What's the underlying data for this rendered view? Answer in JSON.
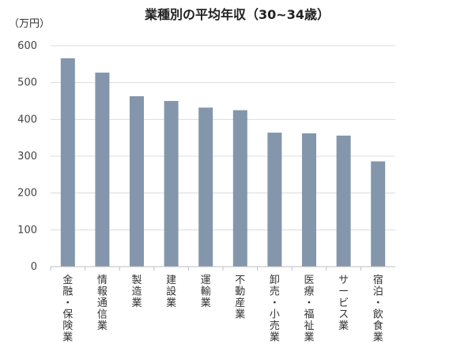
{
  "chart_data": {
    "type": "bar",
    "title": "業種別の平均年収（30~34歳）",
    "unit_label": "（万円）",
    "categories": [
      "金融・保険業",
      "情報通信業",
      "製造業",
      "建設業",
      "運輸業",
      "不動産業",
      "卸売・小売業",
      "医療・福祉業",
      "サービス業",
      "宿泊・飲食業"
    ],
    "values": [
      566,
      527,
      463,
      450,
      432,
      425,
      364,
      362,
      356,
      286
    ],
    "ylim": [
      0,
      600
    ],
    "yticks": [
      0,
      100,
      200,
      300,
      400,
      500,
      600
    ],
    "grid": true,
    "bar_color": "#8496ab"
  }
}
